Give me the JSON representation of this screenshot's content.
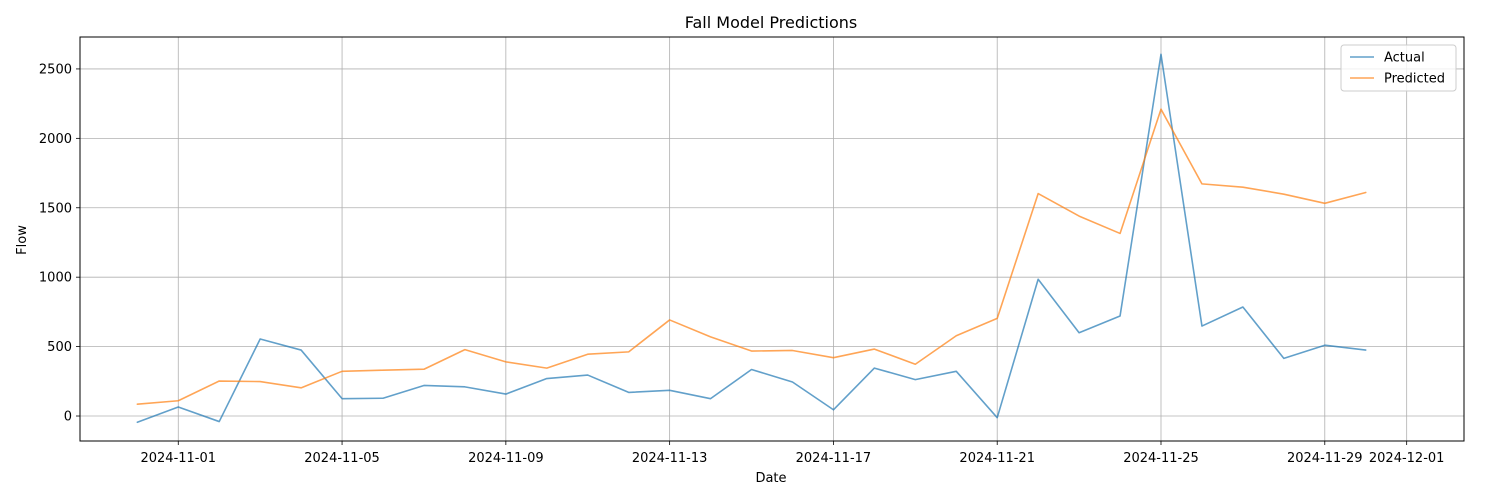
{
  "chart_data": {
    "type": "line",
    "title": "Fall Model Predictions",
    "xlabel": "Date",
    "ylabel": "Flow",
    "x": [
      "2024-10-31",
      "2024-11-01",
      "2024-11-02",
      "2024-11-03",
      "2024-11-04",
      "2024-11-05",
      "2024-11-06",
      "2024-11-07",
      "2024-11-08",
      "2024-11-09",
      "2024-11-10",
      "2024-11-11",
      "2024-11-12",
      "2024-11-13",
      "2024-11-14",
      "2024-11-15",
      "2024-11-16",
      "2024-11-17",
      "2024-11-18",
      "2024-11-19",
      "2024-11-20",
      "2024-11-21",
      "2024-11-22",
      "2024-11-23",
      "2024-11-24",
      "2024-11-25",
      "2024-11-26",
      "2024-11-27",
      "2024-11-28",
      "2024-11-29",
      "2024-11-30"
    ],
    "series": [
      {
        "name": "Actual",
        "color": "#1f77b4",
        "values": [
          -45,
          65,
          -40,
          555,
          475,
          125,
          128,
          220,
          210,
          158,
          270,
          295,
          170,
          185,
          125,
          335,
          245,
          45,
          345,
          262,
          322,
          -12,
          985,
          600,
          720,
          2605,
          648,
          785,
          415,
          510,
          475
        ]
      },
      {
        "name": "Predicted",
        "color": "#ff7f0e",
        "values": [
          85,
          110,
          252,
          248,
          203,
          322,
          330,
          337,
          478,
          390,
          345,
          445,
          462,
          692,
          570,
          468,
          472,
          420,
          482,
          373,
          578,
          703,
          1602,
          1440,
          1315,
          2210,
          1672,
          1648,
          1598,
          1532,
          1610
        ]
      }
    ],
    "x_ticks": [
      "2024-11-01",
      "2024-11-05",
      "2024-11-09",
      "2024-11-13",
      "2024-11-17",
      "2024-11-21",
      "2024-11-25",
      "2024-11-29",
      "2024-12-01"
    ],
    "y_ticks": [
      0,
      500,
      1000,
      1500,
      2000,
      2500
    ],
    "xlim": [
      "2024-10-29.6",
      "2024-12-02.4"
    ],
    "ylim": [
      -180,
      2730
    ],
    "grid": true,
    "legend_position": "top-right"
  }
}
